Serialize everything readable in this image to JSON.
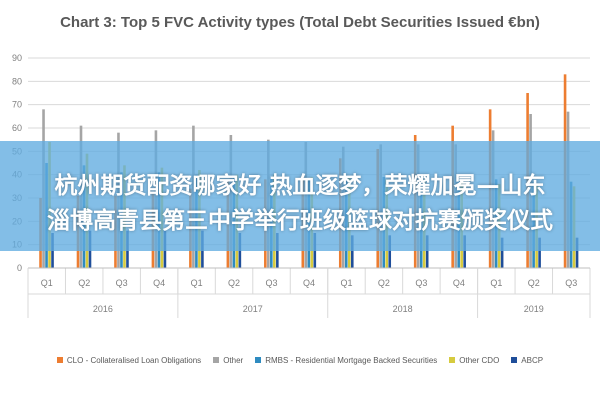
{
  "chart_data": {
    "type": "bar",
    "title": "Chart 3: Top 5 FVC Activity types (Total Debt Securities Issued €bn)",
    "xlabel": "",
    "ylabel": "",
    "ylim": [
      0,
      90
    ],
    "yticks": [
      0,
      10,
      20,
      30,
      40,
      50,
      60,
      70,
      80,
      90
    ],
    "grid": true,
    "legend_position": "bottom",
    "categories": [
      "Q1",
      "Q2",
      "Q3",
      "Q4",
      "Q1",
      "Q2",
      "Q3",
      "Q4",
      "Q1",
      "Q2",
      "Q3",
      "Q4",
      "Q1",
      "Q2",
      "Q3"
    ],
    "year_groups": [
      {
        "label": "2016",
        "count": 4
      },
      {
        "label": "2017",
        "count": 4
      },
      {
        "label": "2018",
        "count": 4
      },
      {
        "label": "2019",
        "count": 3
      }
    ],
    "series": [
      {
        "name": "CLO - Collateralised Loan Obligations",
        "color": "#ED7D31",
        "values": [
          30,
          31,
          31,
          32,
          34,
          37,
          38,
          40,
          47,
          51,
          57,
          61,
          68,
          75,
          83
        ]
      },
      {
        "name": "Other",
        "color": "#A5A5A5",
        "values": [
          68,
          61,
          58,
          59,
          61,
          57,
          55,
          54,
          52,
          53,
          53,
          53,
          59,
          66,
          67
        ]
      },
      {
        "name": "RMBS - Residential Mortgage Backed Securities",
        "color": "#2E8BC0",
        "values": [
          45,
          44,
          41,
          41,
          40,
          39,
          39,
          38,
          39,
          39,
          39,
          38,
          38,
          37,
          37
        ]
      },
      {
        "name": "Other CDO",
        "color": "#D6CB3F",
        "values": [
          54,
          49,
          44,
          43,
          42,
          40,
          40,
          39,
          39,
          38,
          38,
          37,
          36,
          36,
          35
        ]
      },
      {
        "name": "ABCP",
        "color": "#1F4E9A",
        "values": [
          15,
          16,
          16,
          16,
          16,
          15,
          15,
          15,
          14,
          14,
          14,
          14,
          13,
          13,
          13
        ]
      }
    ]
  },
  "overlay": {
    "line1": "杭州期货配资哪家好 热血逐梦，荣耀加冕—山东",
    "line2": "淄博高青县第三中学举行班级篮球对抗赛颁奖仪式"
  }
}
